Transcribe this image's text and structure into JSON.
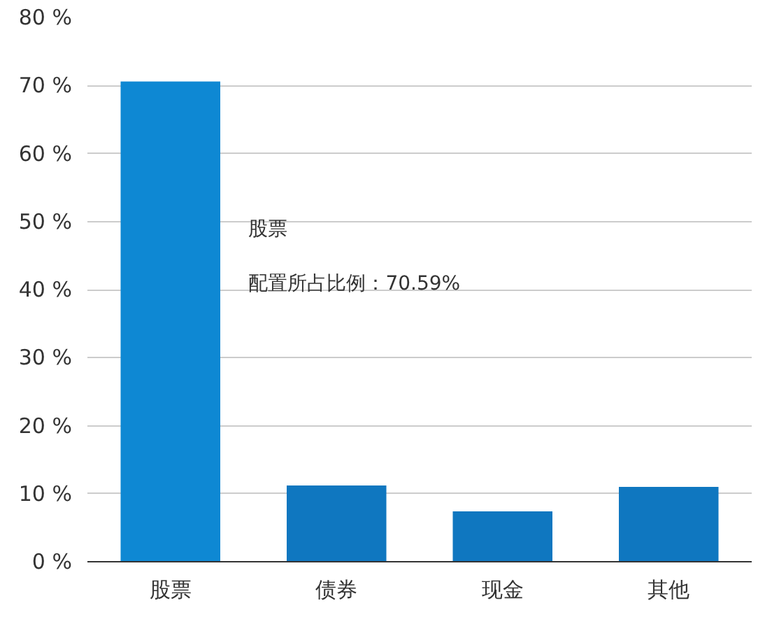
{
  "chart_data": {
    "type": "bar",
    "categories": [
      "股票",
      "债券",
      "现金",
      "其他"
    ],
    "values": [
      70.59,
      11.2,
      7.4,
      11.0
    ],
    "colors": [
      "#0e88d3",
      "#0f77c0",
      "#0f77c0",
      "#0f77c0"
    ],
    "ylim": [
      0,
      80
    ],
    "yticks": [
      {
        "value": 0,
        "label": "0 %"
      },
      {
        "value": 10,
        "label": "10 %"
      },
      {
        "value": 20,
        "label": "20 %"
      },
      {
        "value": 30,
        "label": "30 %"
      },
      {
        "value": 40,
        "label": "40 %"
      },
      {
        "value": 50,
        "label": "50 %"
      },
      {
        "value": 60,
        "label": "60 %"
      },
      {
        "value": 70,
        "label": "70 %"
      },
      {
        "value": 80,
        "label": "80 %"
      }
    ],
    "grid": "y",
    "annotations": [
      "股票",
      "配置所占比例：70.59%"
    ]
  }
}
